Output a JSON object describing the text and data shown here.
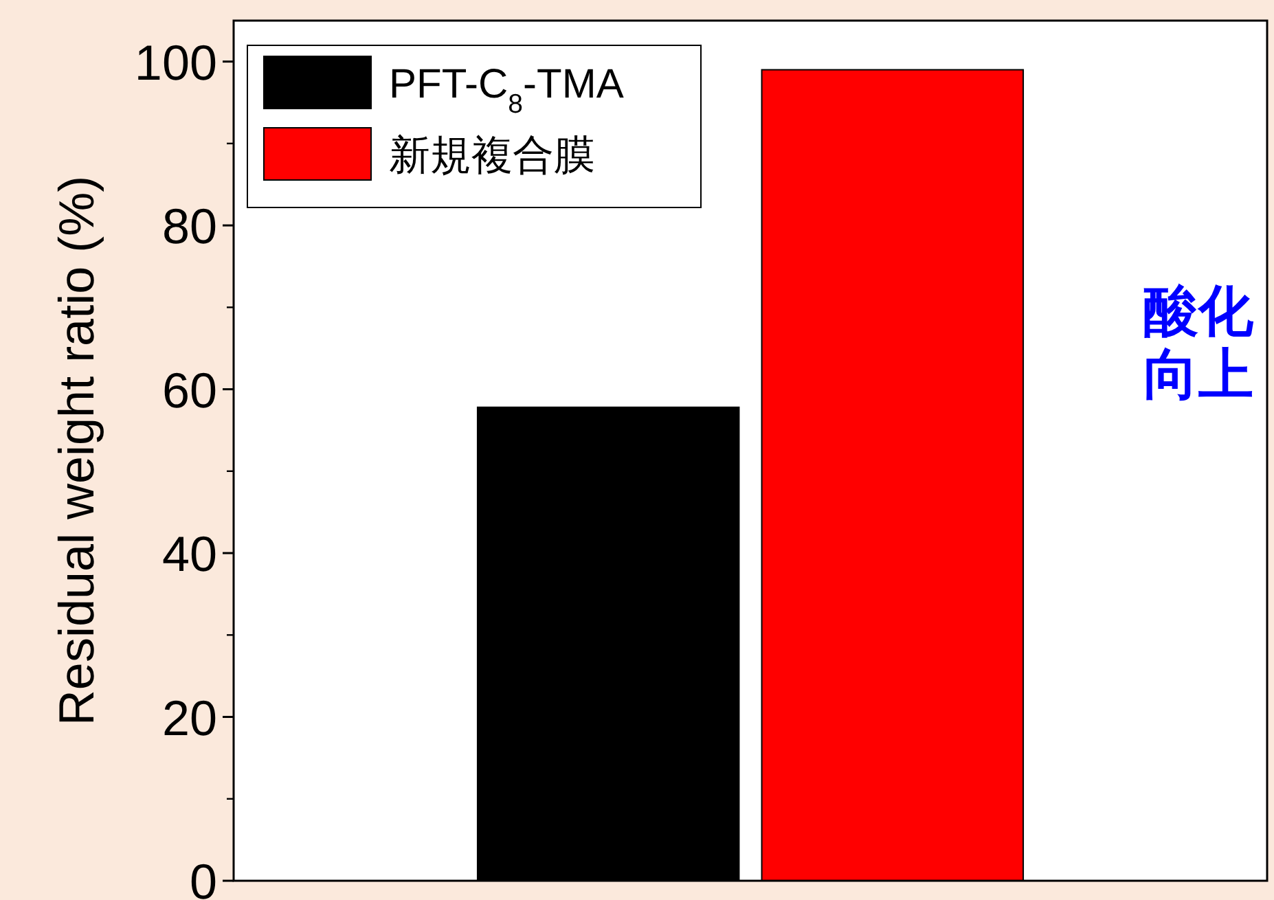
{
  "chart_data": {
    "type": "bar",
    "categories": [
      null
    ],
    "series": [
      {
        "name": "PFT-C$_{8}$-TMA",
        "color": "#000000",
        "values": [
          57.8
        ]
      },
      {
        "name": "新規複合膜",
        "color": "#ff0000",
        "values": [
          99
        ]
      }
    ],
    "ylabel": "Residual weight ratio (%)",
    "ylim": [
      0,
      105
    ],
    "yticks": [
      0,
      20,
      40,
      60,
      80,
      100
    ],
    "legend": "top left",
    "annotations": [
      "酸化",
      "向上"
    ]
  }
}
